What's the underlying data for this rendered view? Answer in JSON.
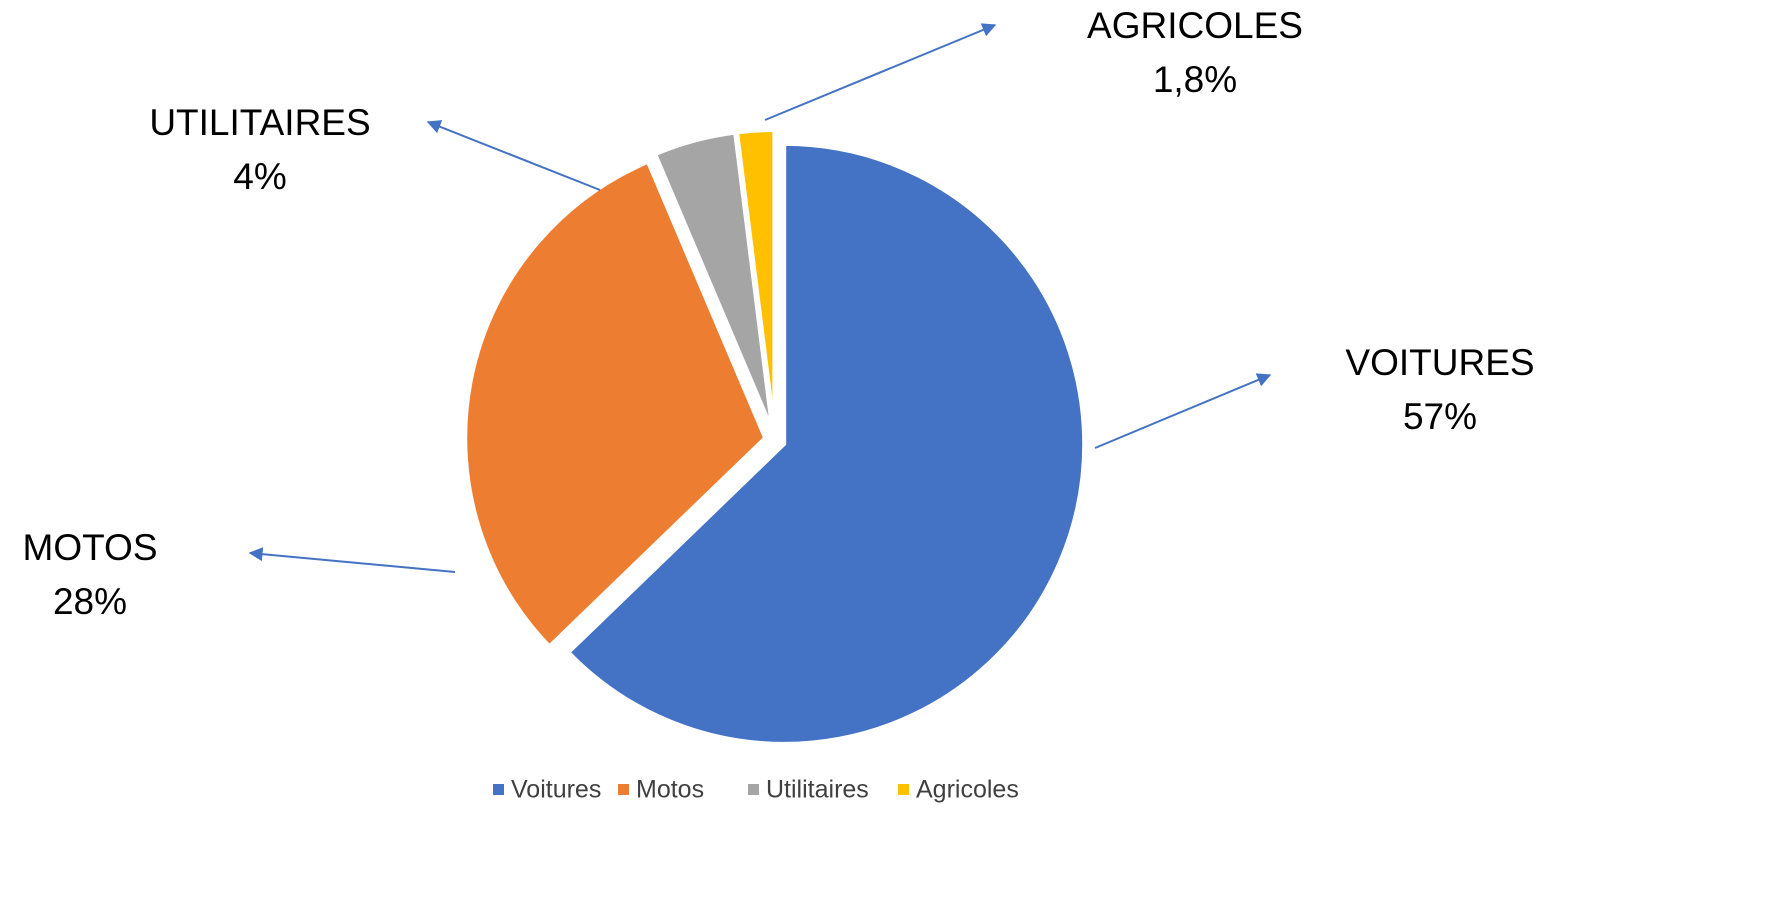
{
  "chart_data": {
    "type": "pie",
    "categories": [
      "Voitures",
      "Motos",
      "Utilitaires",
      "Agricoles"
    ],
    "data_label_names": [
      "VOITURES",
      "MOTOS",
      "UTILITAIRES",
      "AGRICOLES"
    ],
    "values": [
      57,
      28,
      4,
      1.8
    ],
    "value_labels": [
      "57%",
      "28%",
      "4%",
      "1,8%"
    ],
    "colors": [
      "#4472c4",
      "#ed7d31",
      "#a5a5a5",
      "#ffc000"
    ],
    "legend": "bottom"
  }
}
